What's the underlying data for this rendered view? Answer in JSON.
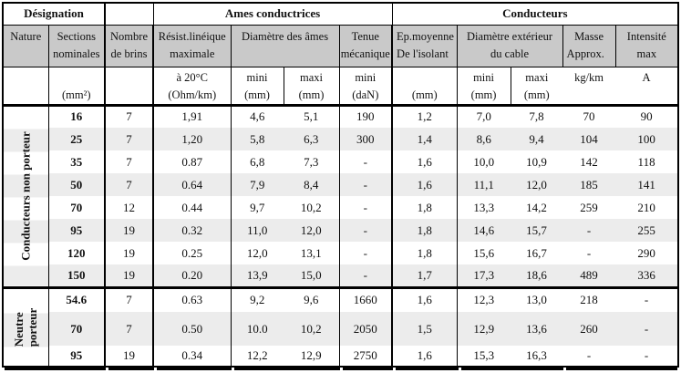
{
  "header": {
    "designation": "Désignation",
    "ames": "Ames conductrices",
    "conducteurs": "Conducteurs",
    "cols": {
      "nature": {
        "l1": "Nature",
        "l2": ""
      },
      "sections": {
        "l1": "Sections",
        "l2": "nominales"
      },
      "brins": {
        "l1": "Nombre",
        "l2": "de brins"
      },
      "resist": {
        "l1": "Résist.linéique",
        "l2": "maximale"
      },
      "dames": {
        "l1": "Diamètre  des âmes",
        "l2": ""
      },
      "tenue": {
        "l1": "Tenue",
        "l2": "mécanique"
      },
      "ep": {
        "l1": "Ep.moyenne",
        "l2": "De l'isolant"
      },
      "dext": {
        "l1": "Diamètre  extérieur",
        "l2": "du  cable"
      },
      "masse": {
        "l1": "Masse",
        "l2": "Approx."
      },
      "intensite": {
        "l1": "Intensité",
        "l2": "max"
      }
    },
    "units": {
      "sections": {
        "l1": "",
        "l2": "(mm²)"
      },
      "resist": {
        "l1": "à 20°C",
        "l2": "(Ohm/km)"
      },
      "amin": {
        "l1": "mini",
        "l2": "(mm)"
      },
      "amax": {
        "l1": "maxi",
        "l2": "(mm)"
      },
      "tenue": {
        "l1": "mini",
        "l2": "(daN)"
      },
      "ep": {
        "l1": "",
        "l2": "(mm)"
      },
      "extmin": {
        "l1": "mini",
        "l2": "(mm)"
      },
      "extmax": {
        "l1": "maxi",
        "l2": "(mm)"
      },
      "masse": {
        "l1": "kg/km",
        "l2": ""
      },
      "intensite": {
        "l1": "A",
        "l2": ""
      }
    }
  },
  "body": {
    "sections": [
      {
        "label_lines": [
          "Conducteurs non porteur"
        ],
        "rows": [
          {
            "sect": "16",
            "brins": "7",
            "resist": "1,91",
            "amin": "4,6",
            "amax": "5,1",
            "tenue": "190",
            "ep": "1,2",
            "extmin": "7,0",
            "extmax": "7,8",
            "masse": "70",
            "int": "90"
          },
          {
            "sect": "25",
            "brins": "7",
            "resist": "1,20",
            "amin": "5,8",
            "amax": "6,3",
            "tenue": "300",
            "ep": "1,4",
            "extmin": "8,6",
            "extmax": "9,4",
            "masse": "104",
            "int": "100"
          },
          {
            "sect": "35",
            "brins": "7",
            "resist": "0.87",
            "amin": "6,8",
            "amax": "7,3",
            "tenue": "-",
            "ep": "1,6",
            "extmin": "10,0",
            "extmax": "10,9",
            "masse": "142",
            "int": "118"
          },
          {
            "sect": "50",
            "brins": "7",
            "resist": "0.64",
            "amin": "7,9",
            "amax": "8,4",
            "tenue": "-",
            "ep": "1,6",
            "extmin": "11,1",
            "extmax": "12,0",
            "masse": "185",
            "int": "141"
          },
          {
            "sect": "70",
            "brins": "12",
            "resist": "0.44",
            "amin": "9,7",
            "amax": "10,2",
            "tenue": "-",
            "ep": "1,8",
            "extmin": "13,3",
            "extmax": "14,2",
            "masse": "259",
            "int": "210"
          },
          {
            "sect": "95",
            "brins": "19",
            "resist": "0.32",
            "amin": "11,0",
            "amax": "12,0",
            "tenue": "-",
            "ep": "1,8",
            "extmin": "14,6",
            "extmax": "15,7",
            "masse": "-",
            "int": "255"
          },
          {
            "sect": "120",
            "brins": "19",
            "resist": "0.25",
            "amin": "12,0",
            "amax": "13,1",
            "tenue": "-",
            "ep": "1,8",
            "extmin": "15,6",
            "extmax": "16,7",
            "masse": "-",
            "int": "290"
          },
          {
            "sect": "150",
            "brins": "19",
            "resist": "0.20",
            "amin": "13,9",
            "amax": "15,0",
            "tenue": "-",
            "ep": "1,7",
            "extmin": "17,3",
            "extmax": "18,6",
            "masse": "489",
            "int": "336"
          }
        ]
      },
      {
        "label_lines": [
          "Neutre",
          "porteur"
        ],
        "rows": [
          {
            "sect": "54.6",
            "brins": "7",
            "resist": "0.63",
            "amin": "9,2",
            "amax": "9,6",
            "tenue": "1660",
            "ep": "1,6",
            "extmin": "12,3",
            "extmax": "13,0",
            "masse": "218",
            "int": "-"
          },
          {
            "sect": "70",
            "brins": "7",
            "resist": "0.50",
            "amin": "10.0",
            "amax": "10,2",
            "tenue": "2050",
            "ep": "1,5",
            "extmin": "12,9",
            "extmax": "13,6",
            "masse": "260",
            "int": "-"
          },
          {
            "sect": "95",
            "brins": "19",
            "resist": "0.34",
            "amin": "12,2",
            "amax": "12,9",
            "tenue": "2750",
            "ep": "1,6",
            "extmin": "15,3",
            "extmax": "16,3",
            "masse": "-",
            "int": "-"
          }
        ]
      }
    ]
  },
  "colors": {
    "header_gray": "#c9c9c9",
    "row_stripe": "#ececec",
    "border": "#000000"
  }
}
